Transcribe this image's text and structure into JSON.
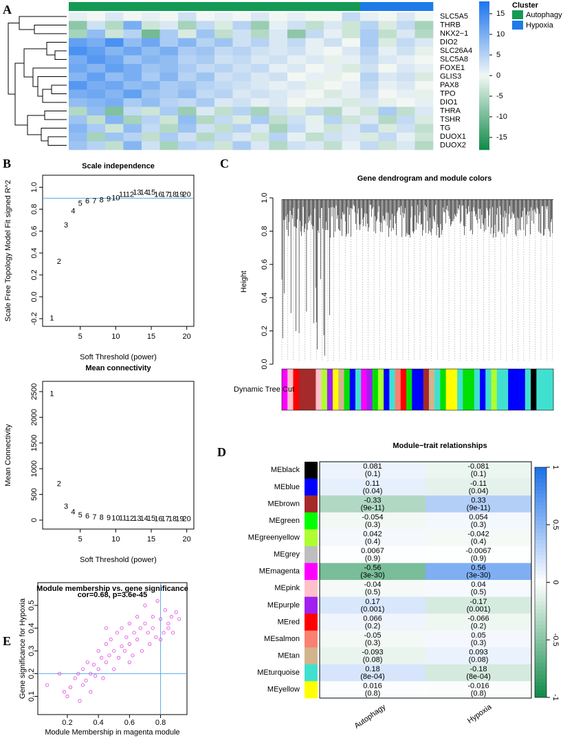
{
  "chart_data": [
    {
      "type": "heatmap",
      "panel": "A",
      "rows": [
        "SLC5A5",
        "THRB",
        "NKX2−1",
        "DIO2",
        "SLC26A4",
        "SLC5A8",
        "FOXE1",
        "GLIS3",
        "PAX8",
        "TPO",
        "DIO1",
        "THRA",
        "TSHR",
        "TG",
        "DUOX1",
        "DUOX2"
      ],
      "column_clusters": [
        "Autophagy",
        "Autophagy",
        "Autophagy",
        "Autophagy",
        "Autophagy",
        "Autophagy",
        "Autophagy",
        "Autophagy",
        "Autophagy",
        "Autophagy",
        "Autophagy",
        "Autophagy",
        "Autophagy",
        "Autophagy",
        "Autophagy",
        "Autophagy",
        "Hypoxia",
        "Hypoxia",
        "Hypoxia",
        "Hypoxia"
      ],
      "values": [
        [
          1,
          0,
          2,
          0,
          1,
          0,
          3,
          0,
          1,
          0,
          2,
          0,
          1,
          0,
          0,
          4,
          1,
          0,
          2,
          0
        ],
        [
          -8,
          3,
          -5,
          10,
          -3,
          2,
          -6,
          4,
          -2,
          5,
          -7,
          1,
          3,
          -4,
          2,
          -3,
          5,
          -2,
          4,
          -6
        ],
        [
          -6,
          8,
          -3,
          5,
          -10,
          6,
          -2,
          7,
          -4,
          3,
          -5,
          2,
          -8,
          4,
          1,
          -3,
          6,
          -4,
          2,
          -5
        ],
        [
          12,
          10,
          14,
          8,
          11,
          6,
          9,
          5,
          7,
          3,
          5,
          2,
          4,
          1,
          3,
          0,
          6,
          -2,
          4,
          2
        ],
        [
          14,
          12,
          9,
          11,
          8,
          10,
          6,
          7,
          4,
          5,
          3,
          2,
          3,
          1,
          0,
          2,
          5,
          1,
          3,
          -1
        ],
        [
          10,
          13,
          11,
          7,
          9,
          8,
          5,
          6,
          3,
          4,
          2,
          3,
          1,
          2,
          -1,
          1,
          4,
          2,
          1,
          0
        ],
        [
          11,
          9,
          12,
          10,
          7,
          8,
          6,
          4,
          5,
          3,
          4,
          1,
          2,
          0,
          1,
          -2,
          3,
          0,
          2,
          1
        ],
        [
          9,
          12,
          8,
          10,
          6,
          9,
          5,
          7,
          3,
          4,
          2,
          3,
          0,
          1,
          -1,
          0,
          5,
          2,
          3,
          -2
        ],
        [
          13,
          10,
          11,
          8,
          9,
          6,
          7,
          5,
          4,
          3,
          2,
          1,
          2,
          -1,
          0,
          1,
          4,
          1,
          2,
          0
        ],
        [
          10,
          11,
          9,
          12,
          7,
          6,
          8,
          4,
          5,
          2,
          3,
          2,
          1,
          0,
          -2,
          1,
          3,
          0,
          1,
          -1
        ],
        [
          8,
          9,
          10,
          6,
          8,
          5,
          4,
          6,
          2,
          3,
          1,
          2,
          0,
          -1,
          1,
          -2,
          2,
          -1,
          0,
          1
        ],
        [
          -5,
          8,
          -9,
          4,
          -3,
          6,
          -7,
          2,
          -4,
          5,
          -6,
          3,
          -2,
          4,
          -5,
          1,
          -3,
          6,
          -4,
          2
        ],
        [
          7,
          -4,
          9,
          -6,
          5,
          -3,
          8,
          -5,
          4,
          -2,
          6,
          -4,
          3,
          -1,
          5,
          -3,
          2,
          -5,
          4,
          -2
        ],
        [
          9,
          6,
          -3,
          8,
          4,
          -5,
          7,
          3,
          -4,
          5,
          2,
          -6,
          4,
          1,
          -3,
          2,
          5,
          -2,
          3,
          -4
        ],
        [
          8,
          -6,
          7,
          5,
          -4,
          6,
          3,
          -5,
          4,
          2,
          -3,
          5,
          1,
          -4,
          3,
          2,
          -2,
          4,
          1,
          -3
        ],
        [
          7,
          5,
          -4,
          9,
          3,
          -6,
          5,
          4,
          -3,
          6,
          2,
          -5,
          3,
          2,
          -4,
          1,
          4,
          -3,
          2,
          -5
        ]
      ],
      "clim": [
        -18,
        18
      ],
      "colorbar_ticks": [
        15,
        10,
        5,
        0,
        -5,
        -10,
        -15
      ],
      "low_color": "#0f8a48",
      "mid_color": "#f2f7f4",
      "high_color": "#1a74f0",
      "legend": {
        "title": "Cluster",
        "items": [
          {
            "name": "Autophagy",
            "color": "#149a54"
          },
          {
            "name": "Hypoxia",
            "color": "#1e7be8"
          }
        ]
      }
    },
    {
      "type": "scatter",
      "panel": "B",
      "marker": "text",
      "color": "#1a6fd6",
      "title": "Scale independence",
      "x_label": "Soft Threshold (power)",
      "y_label": "Scale Free Topology Model Fit signed R^2",
      "x": [
        1,
        2,
        3,
        4,
        5,
        6,
        7,
        8,
        9,
        10,
        11,
        12,
        13,
        14,
        15,
        16,
        17,
        18,
        19,
        20
      ],
      "values": [
        -0.2,
        0.32,
        0.65,
        0.78,
        0.85,
        0.87,
        0.87,
        0.88,
        0.89,
        0.9,
        0.93,
        0.93,
        0.95,
        0.95,
        0.95,
        0.93,
        0.93,
        0.93,
        0.93,
        0.93
      ],
      "hline": 0.9,
      "xlim": [
        -0.3,
        21
      ],
      "ylim": [
        -0.27,
        1.11
      ],
      "xticks": [
        5,
        10,
        15,
        20
      ],
      "yticks": [
        -0.2,
        {
          "value": 0,
          "label": "0.0"
        },
        0.2,
        0.4,
        0.6,
        0.8,
        {
          "value": 1,
          "label": "1.0"
        }
      ]
    },
    {
      "type": "scatter",
      "marker": "text",
      "color": "#1a6fd6",
      "title": "Mean connectivity",
      "x_label": "Soft Threshold (power)",
      "y_label": "Mean Connectivity",
      "x": [
        1,
        2,
        3,
        4,
        5,
        6,
        7,
        8,
        9,
        10,
        11,
        12,
        13,
        14,
        15,
        16,
        17,
        18,
        19,
        20
      ],
      "values": [
        2450,
        700,
        260,
        150,
        95,
        70,
        55,
        45,
        40,
        35,
        30,
        28,
        25,
        23,
        22,
        20,
        19,
        18,
        17,
        16
      ],
      "xlim": [
        -0.3,
        21
      ],
      "ylim": [
        -174,
        2700
      ],
      "xticks": [
        5,
        10,
        15,
        20
      ],
      "yticks": [
        0,
        500,
        1000,
        1500,
        2000,
        2500
      ]
    },
    {
      "type": "dendrogram",
      "panel": "C",
      "title": "Gene dendrogram and module colors",
      "y_label": "Height",
      "ylim": [
        0,
        1
      ],
      "yticks": [
        {
          "value": 0,
          "label": "0.0"
        },
        0.2,
        0.4,
        0.6,
        0.8,
        {
          "value": 1,
          "label": "1.0"
        }
      ],
      "color_row_label": "Dynamic Tree Cut",
      "module_colors": [
        "#ff00ff",
        "#ffc0cb",
        "#ff0000",
        "#a52a2a",
        "#a52a2a",
        "#a52a2a",
        "#ffc0cb",
        "#adff2f",
        "#a020f0",
        "#ffff00",
        "#d2b48c",
        "#00e000",
        "#0000ff",
        "#40e0d0",
        "#ff00ff",
        "#a020f0",
        "#00e000",
        "#adff2f",
        "#0000ff",
        "#40e0d0",
        "#fa8072",
        "#ff0000",
        "#00e000",
        "#0000ff",
        "#0000ff",
        "#a52a2a",
        "#d2b48c",
        "#40e0d0",
        "#00e000",
        "#ffff00",
        "#ffff00",
        "#40e0d0",
        "#00e000",
        "#00e000",
        "#40e0d0",
        "#0000ff",
        "#40e0d0",
        "#adff2f",
        "#40e0d0",
        "#40e0d0",
        "#0000ff",
        "#0000ff",
        "#0000ff",
        "#40e0d0",
        "#000000",
        "#40e0d0",
        "#40e0d0",
        "#40e0d0"
      ]
    },
    {
      "type": "heatmap",
      "panel": "D",
      "title": "Module−trait relationships",
      "rows": [
        "MEblack",
        "MEblue",
        "MEbrown",
        "MEgreen",
        "MEgreenyellow",
        "MEgrey",
        "MEmagenta",
        "MEpink",
        "MEpurple",
        "MEred",
        "MEsalmon",
        "MEtan",
        "MEturquoise",
        "MEyellow"
      ],
      "row_colors": [
        "#000000",
        "#0000ff",
        "#a52a2a",
        "#00ff00",
        "#adff2f",
        "#bebebe",
        "#ff00ff",
        "#ffc0cb",
        "#a020f0",
        "#ff0000",
        "#fa8072",
        "#d2b48c",
        "#40e0d0",
        "#ffff00"
      ],
      "series": [
        {
          "name": "Autophagy",
          "values": [
            0.081,
            0.11,
            -0.33,
            -0.054,
            0.042,
            0.0067,
            -0.56,
            -0.04,
            0.17,
            0.066,
            -0.05,
            -0.093,
            0.18,
            0.016
          ],
          "pvalues": [
            0.1,
            0.04,
            9e-11,
            0.3,
            0.4,
            0.9,
            3e-30,
            0.5,
            0.001,
            0.2,
            0.3,
            0.08,
            0.0008,
            0.8
          ],
          "pvalue_labels": [
            "(0.1)",
            "(0.04)",
            "(9e-11)",
            "(0.3)",
            "(0.4)",
            "(0.9)",
            "(3e-30)",
            "(0.5)",
            "(0.001)",
            "(0.2)",
            "(0.3)",
            "(0.08)",
            "(8e-04)",
            "(0.8)"
          ]
        },
        {
          "name": "Hypoxia",
          "values": [
            -0.081,
            -0.11,
            0.33,
            0.054,
            -0.042,
            -0.0067,
            0.56,
            0.04,
            -0.17,
            -0.066,
            0.05,
            0.093,
            -0.18,
            -0.016
          ],
          "pvalues": [
            0.1,
            0.04,
            9e-11,
            0.3,
            0.4,
            0.9,
            3e-30,
            0.5,
            0.001,
            0.2,
            0.3,
            0.08,
            0.0008,
            0.8
          ],
          "pvalue_labels": [
            "(0.1)",
            "(0.04)",
            "(9e-11)",
            "(0.3)",
            "(0.4)",
            "(0.9)",
            "(3e-30)",
            "(0.5)",
            "(0.001)",
            "(0.2)",
            "(0.3)",
            "(0.08)",
            "(8e-04)",
            "(0.8)"
          ]
        }
      ],
      "clim": [
        -1,
        1
      ],
      "colorbar_ticks": [
        1,
        0.5,
        0,
        -0.5,
        -1
      ],
      "low_color": "#0f8a48",
      "mid_color": "#ffffff",
      "high_color": "#1a6fe8"
    },
    {
      "type": "scatter",
      "panel": "E",
      "marker": "circle",
      "color": "#e040e0",
      "title": "Module membership vs. gene significance",
      "subtitle": "cor=0.68, p=3.6e-45",
      "x_label": "Module Membership in magenta module",
      "y_label": "Gene significance for Hypoxia",
      "x": [
        0.07,
        0.15,
        0.18,
        0.2,
        0.22,
        0.25,
        0.27,
        0.28,
        0.3,
        0.3,
        0.32,
        0.33,
        0.35,
        0.35,
        0.37,
        0.38,
        0.4,
        0.4,
        0.42,
        0.43,
        0.45,
        0.45,
        0.47,
        0.48,
        0.5,
        0.5,
        0.52,
        0.53,
        0.55,
        0.55,
        0.57,
        0.58,
        0.6,
        0.6,
        0.62,
        0.63,
        0.65,
        0.65,
        0.67,
        0.68,
        0.7,
        0.7,
        0.72,
        0.73,
        0.75,
        0.75,
        0.77,
        0.78,
        0.8,
        0.8,
        0.82,
        0.83,
        0.85,
        0.85,
        0.87,
        0.88,
        0.9,
        0.92,
        0.6,
        0.45
      ],
      "values": [
        0.15,
        0.2,
        0.12,
        0.1,
        0.14,
        0.18,
        0.2,
        0.08,
        0.22,
        0.15,
        0.17,
        0.25,
        0.2,
        0.12,
        0.24,
        0.19,
        0.3,
        0.22,
        0.27,
        0.18,
        0.33,
        0.25,
        0.28,
        0.35,
        0.3,
        0.22,
        0.38,
        0.27,
        0.32,
        0.4,
        0.3,
        0.36,
        0.33,
        0.42,
        0.28,
        0.38,
        0.45,
        0.35,
        0.4,
        0.3,
        0.42,
        0.5,
        0.38,
        0.33,
        0.45,
        0.4,
        0.36,
        0.52,
        0.44,
        0.35,
        0.38,
        0.48,
        0.42,
        0.4,
        0.45,
        0.38,
        0.47,
        0.44,
        0.25,
        0.4
      ],
      "hline": 0.2,
      "vline": 0.8,
      "xlim": [
        0.01,
        0.97
      ],
      "ylim": [
        0.02,
        0.6
      ],
      "xticks": [
        0.2,
        0.4,
        0.6,
        0.8
      ],
      "yticks": [
        0.1,
        0.2,
        0.3,
        0.4,
        0.5
      ]
    }
  ]
}
